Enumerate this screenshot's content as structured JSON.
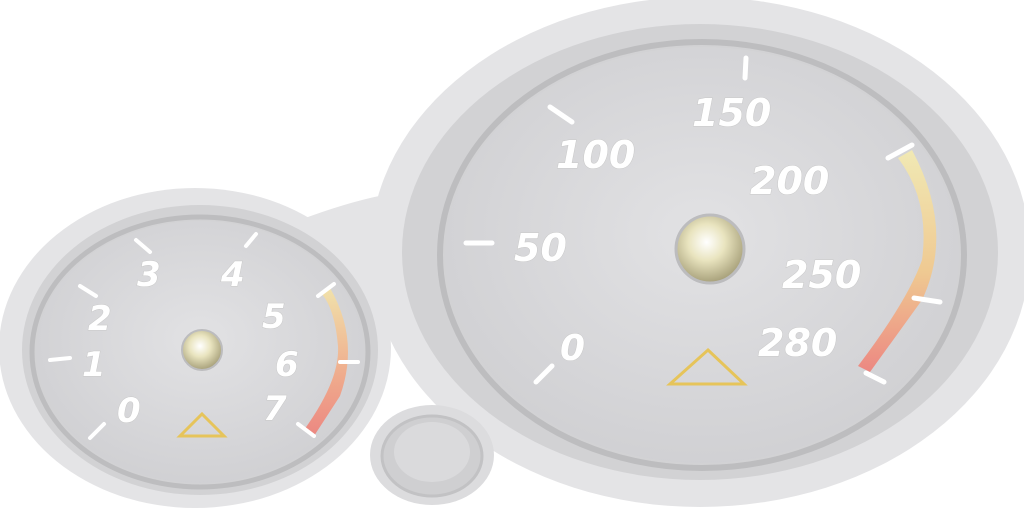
{
  "tachometer": {
    "labels": [
      "0",
      "1",
      "2",
      "3",
      "4",
      "5",
      "6",
      "7"
    ],
    "warning_icon": "triangle-warning-icon"
  },
  "speedometer": {
    "labels": [
      "0",
      "50",
      "100",
      "150",
      "200",
      "250",
      "280"
    ],
    "warning_icon": "triangle-warning-icon"
  },
  "colors": {
    "dial_face": "#d9d9db",
    "bezel": "#cfcfd1",
    "redline_start": "#f2e6a0",
    "redline_end": "#f0807a",
    "warning_triangle": "#e6c45a",
    "hub": "#e8e2b8"
  }
}
